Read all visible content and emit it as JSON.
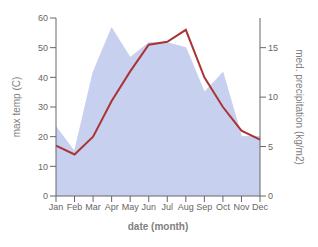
{
  "chart_data": {
    "type": "line",
    "xlabel": "date (month)",
    "ylabel": "max temp (C)",
    "y2label": "med. precipitation (kg/m2)",
    "categories": [
      "Jan",
      "Feb",
      "Mar",
      "Apr",
      "May",
      "Jun",
      "Jul",
      "Aug",
      "Sep",
      "Oct",
      "Nov",
      "Dec"
    ],
    "series": [
      {
        "type": "area",
        "axis": "y2",
        "color": "#c8d0f0",
        "values": [
          7,
          4.5,
          12.5,
          17,
          14,
          15.5,
          15.5,
          15,
          10.5,
          12.5,
          6,
          6
        ]
      },
      {
        "type": "line",
        "color": "#aa3333",
        "values": [
          17,
          14,
          20,
          32,
          42,
          51,
          52,
          56,
          40,
          30,
          22,
          19
        ]
      }
    ],
    "ylim": [
      0,
      60
    ],
    "yticks": [
      0,
      10,
      20,
      30,
      40,
      50,
      60
    ],
    "y2lim": [
      0,
      18
    ],
    "y2ticks": [
      0,
      5,
      10,
      15
    ],
    "grid": false
  }
}
